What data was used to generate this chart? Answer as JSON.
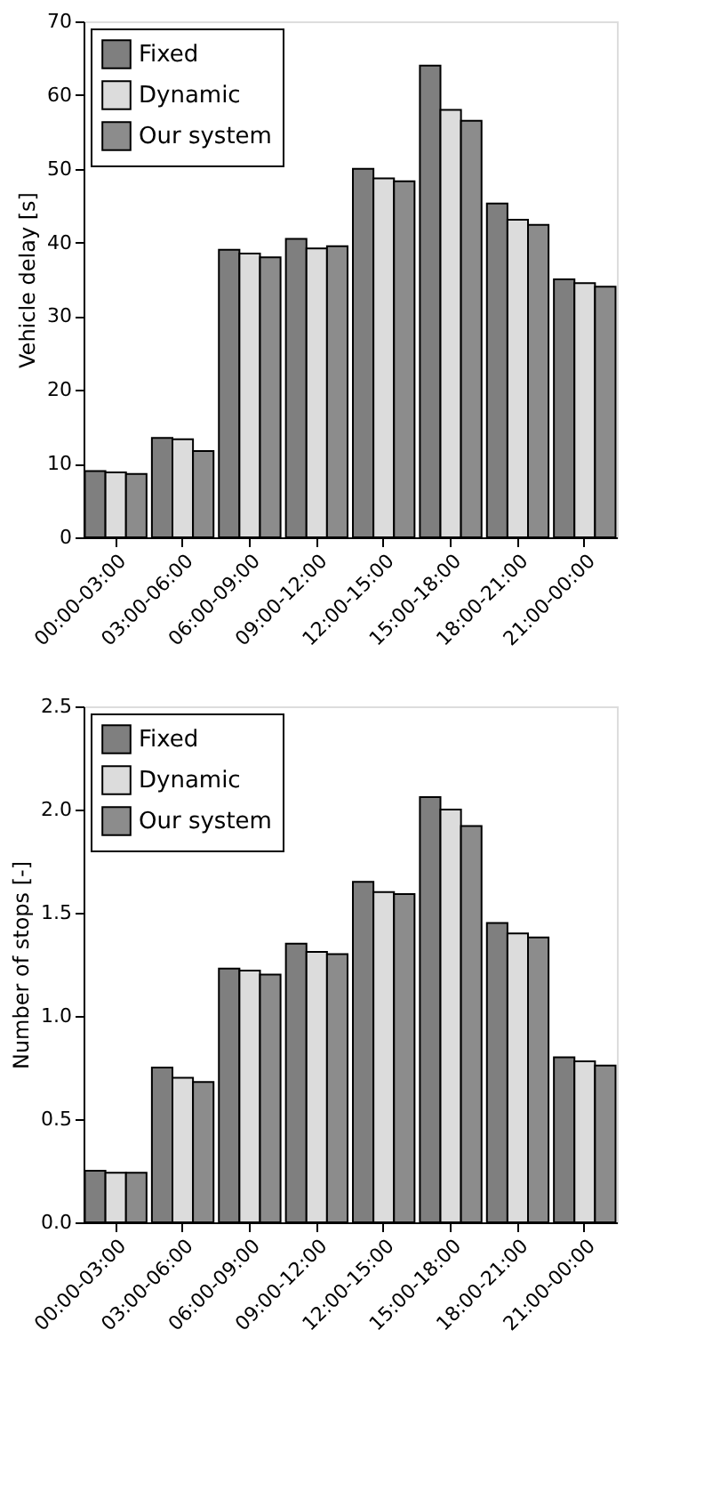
{
  "chart_data": [
    {
      "type": "bar",
      "ylabel": "Vehicle delay [s]",
      "categories": [
        "00:00-03:00",
        "03:00-06:00",
        "06:00-09:00",
        "09:00-12:00",
        "12:00-15:00",
        "15:00-18:00",
        "18:00-21:00",
        "21:00-00:00"
      ],
      "series": [
        {
          "name": "Fixed",
          "color": "#7f7f7f",
          "values": [
            9,
            13.5,
            39,
            40.5,
            50,
            64,
            45.3,
            35
          ]
        },
        {
          "name": "Dynamic",
          "color": "#dcdcdc",
          "values": [
            8.8,
            13.3,
            38.5,
            39.2,
            48.7,
            58,
            43.1,
            34.5
          ]
        },
        {
          "name": "Our system",
          "color": "#8c8c8c",
          "values": [
            8.6,
            11.7,
            38,
            39.5,
            48.3,
            56.5,
            42.4,
            34
          ]
        }
      ],
      "ylim": [
        0,
        70
      ],
      "yticks": [
        0,
        10,
        20,
        30,
        40,
        50,
        60,
        70
      ],
      "grid": false,
      "legend": "top left"
    },
    {
      "type": "bar",
      "ylabel": "Number of stops [-]",
      "categories": [
        "00:00-03:00",
        "03:00-06:00",
        "06:00-09:00",
        "09:00-12:00",
        "12:00-15:00",
        "15:00-18:00",
        "18:00-21:00",
        "21:00-00:00"
      ],
      "series": [
        {
          "name": "Fixed",
          "color": "#7f7f7f",
          "values": [
            0.25,
            0.75,
            1.23,
            1.35,
            1.65,
            2.06,
            1.45,
            0.8
          ]
        },
        {
          "name": "Dynamic",
          "color": "#dcdcdc",
          "values": [
            0.24,
            0.7,
            1.22,
            1.31,
            1.6,
            2.0,
            1.4,
            0.78
          ]
        },
        {
          "name": "Our system",
          "color": "#8c8c8c",
          "values": [
            0.24,
            0.68,
            1.2,
            1.3,
            1.59,
            1.92,
            1.38,
            0.76
          ]
        }
      ],
      "ylim": [
        0,
        2.5
      ],
      "yticks": [
        {
          "value": 0,
          "label": "0.0"
        },
        0.5,
        {
          "value": 1,
          "label": "1.0"
        },
        1.5,
        {
          "value": 2,
          "label": "2.0"
        },
        2.5
      ],
      "grid": false,
      "legend": "top left"
    }
  ]
}
